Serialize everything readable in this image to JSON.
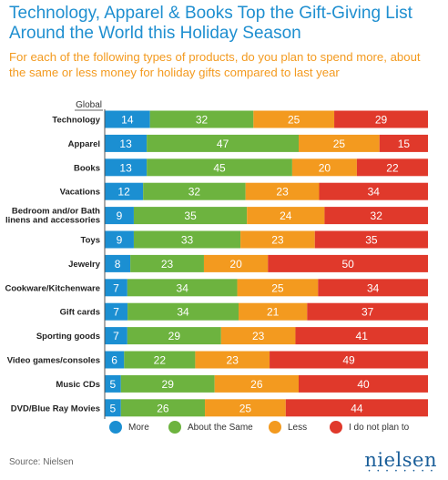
{
  "title": "Technology, Apparel & Books Top the Gift-Giving List Around the World this Holiday Season",
  "subtitle": "For each of the following types of products, do you plan to spend more, about the same or less money for holiday gifts compared to last year",
  "source": "Source: Nielsen",
  "logo": "nielsen",
  "colors": {
    "more": "#1b8fd2",
    "same": "#6db33f",
    "less": "#f39a1f",
    "not": "#e0392b"
  },
  "chart_data": {
    "type": "bar",
    "orientation": "horizontal",
    "stacked": true,
    "group_header": "Global",
    "categories": [
      "Technology",
      "Apparel",
      "Books",
      "Vacations",
      "Bedroom and/or Bath linens and accessories",
      "Toys",
      "Jewelry",
      "Cookware/Kitchenware",
      "Gift cards",
      "Sporting goods",
      "Video games/consoles",
      "Music CDs",
      "DVD/Blue Ray Movies"
    ],
    "series": [
      {
        "name": "More",
        "values": [
          14,
          13,
          13,
          12,
          9,
          9,
          8,
          7,
          7,
          7,
          6,
          5,
          5
        ]
      },
      {
        "name": "About the Same",
        "values": [
          32,
          47,
          45,
          32,
          35,
          33,
          23,
          34,
          34,
          29,
          22,
          29,
          26
        ]
      },
      {
        "name": "Less",
        "values": [
          25,
          25,
          20,
          23,
          24,
          23,
          20,
          25,
          21,
          23,
          23,
          26,
          25
        ]
      },
      {
        "name": "I do not plan to",
        "values": [
          29,
          15,
          22,
          34,
          32,
          35,
          50,
          34,
          37,
          41,
          49,
          40,
          44
        ]
      }
    ],
    "xlim": [
      0,
      100
    ],
    "legend_position": "bottom"
  }
}
